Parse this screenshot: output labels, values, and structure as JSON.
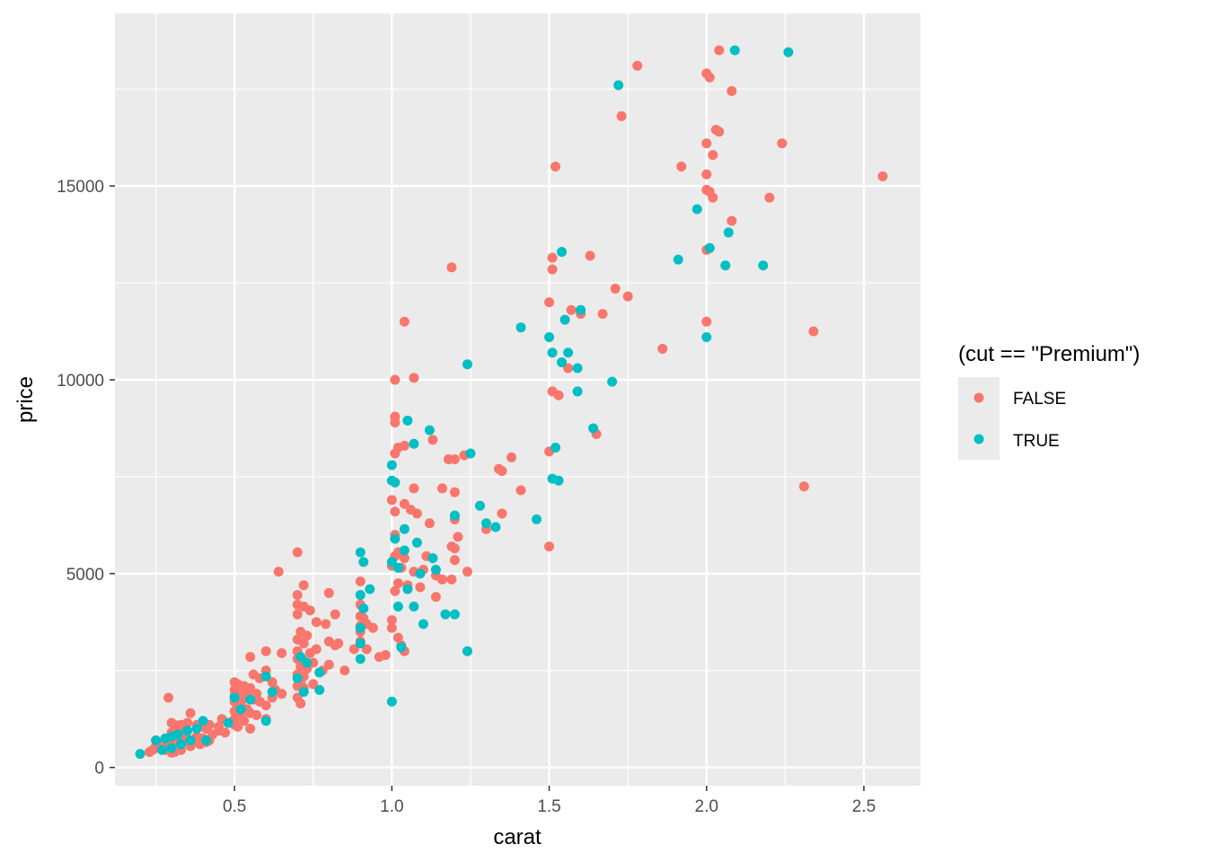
{
  "chart_data": {
    "type": "scatter",
    "xlabel": "carat",
    "ylabel": "price",
    "xlim": [
      0.12,
      2.68
    ],
    "ylim": [
      -470,
      19450
    ],
    "x_ticks": [
      0.5,
      1.0,
      1.5,
      2.0,
      2.5
    ],
    "x_tick_labels": [
      "0.5",
      "1.0",
      "1.5",
      "2.0",
      "2.5"
    ],
    "y_ticks": [
      0,
      5000,
      10000,
      15000
    ],
    "y_tick_labels": [
      "0",
      "5000",
      "10000",
      "15000"
    ],
    "grid": true,
    "panel_background": "#ebebeb",
    "grid_color": "#ffffff",
    "legend": {
      "title": "(cut == \"Premium\")",
      "placement": "right",
      "entries": [
        {
          "label": "FALSE",
          "color": "#F8766D"
        },
        {
          "label": "TRUE",
          "color": "#00BFC4"
        }
      ]
    },
    "series": [
      {
        "name": "FALSE",
        "color": "#F8766D",
        "points": [
          [
            2.04,
            18500
          ],
          [
            2.0,
            17900
          ],
          [
            2.01,
            17800
          ],
          [
            1.78,
            18100
          ],
          [
            2.08,
            17450
          ],
          [
            1.73,
            16800
          ],
          [
            2.03,
            16450
          ],
          [
            2.04,
            16400
          ],
          [
            2.0,
            16100
          ],
          [
            2.24,
            16100
          ],
          [
            2.02,
            15800
          ],
          [
            1.52,
            15500
          ],
          [
            1.92,
            15500
          ],
          [
            2.0,
            15300
          ],
          [
            2.56,
            15250
          ],
          [
            2.0,
            14900
          ],
          [
            2.01,
            14850
          ],
          [
            2.02,
            14700
          ],
          [
            2.2,
            14700
          ],
          [
            2.08,
            14100
          ],
          [
            2.0,
            13350
          ],
          [
            1.51,
            13150
          ],
          [
            1.63,
            13200
          ],
          [
            1.51,
            12850
          ],
          [
            1.19,
            12900
          ],
          [
            1.71,
            12350
          ],
          [
            1.75,
            12150
          ],
          [
            1.5,
            12000
          ],
          [
            1.57,
            11800
          ],
          [
            1.6,
            11700
          ],
          [
            1.67,
            11700
          ],
          [
            2.0,
            11500
          ],
          [
            1.04,
            11500
          ],
          [
            2.34,
            11250
          ],
          [
            1.86,
            10800
          ],
          [
            1.56,
            10300
          ],
          [
            1.01,
            10000
          ],
          [
            1.07,
            10050
          ],
          [
            1.51,
            9700
          ],
          [
            1.53,
            9600
          ],
          [
            1.01,
            9050
          ],
          [
            1.01,
            8900
          ],
          [
            1.65,
            8600
          ],
          [
            1.13,
            8450
          ],
          [
            1.02,
            8250
          ],
          [
            1.04,
            8300
          ],
          [
            1.01,
            8100
          ],
          [
            1.5,
            8150
          ],
          [
            1.2,
            7950
          ],
          [
            1.23,
            8050
          ],
          [
            1.38,
            8000
          ],
          [
            1.18,
            7950
          ],
          [
            1.34,
            7700
          ],
          [
            1.35,
            7650
          ],
          [
            2.31,
            7250
          ],
          [
            1.07,
            7200
          ],
          [
            1.16,
            7200
          ],
          [
            1.2,
            7100
          ],
          [
            1.41,
            7150
          ],
          [
            1.0,
            6900
          ],
          [
            1.04,
            6800
          ],
          [
            1.06,
            6650
          ],
          [
            1.01,
            6600
          ],
          [
            1.08,
            6550
          ],
          [
            1.35,
            6550
          ],
          [
            1.2,
            6400
          ],
          [
            1.12,
            6300
          ],
          [
            1.3,
            6150
          ],
          [
            1.01,
            6000
          ],
          [
            1.21,
            5950
          ],
          [
            1.19,
            5700
          ],
          [
            1.2,
            5650
          ],
          [
            1.5,
            5700
          ],
          [
            1.02,
            5550
          ],
          [
            1.01,
            5450
          ],
          [
            1.04,
            5400
          ],
          [
            1.11,
            5450
          ],
          [
            1.2,
            5350
          ],
          [
            1.0,
            5200
          ],
          [
            1.03,
            5150
          ],
          [
            1.07,
            5050
          ],
          [
            1.1,
            5100
          ],
          [
            1.24,
            5050
          ],
          [
            1.14,
            4950
          ],
          [
            1.16,
            4850
          ],
          [
            1.19,
            4850
          ],
          [
            1.02,
            4750
          ],
          [
            1.05,
            4700
          ],
          [
            1.09,
            4650
          ],
          [
            1.01,
            4550
          ],
          [
            1.14,
            4400
          ],
          [
            0.7,
            5550
          ],
          [
            0.64,
            5050
          ],
          [
            0.9,
            4800
          ],
          [
            0.72,
            4700
          ],
          [
            0.8,
            4500
          ],
          [
            0.7,
            4450
          ],
          [
            0.7,
            4200
          ],
          [
            0.72,
            4150
          ],
          [
            0.74,
            4050
          ],
          [
            0.82,
            3950
          ],
          [
            0.7,
            3950
          ],
          [
            0.9,
            4200
          ],
          [
            0.9,
            3900
          ],
          [
            0.91,
            3850
          ],
          [
            0.79,
            3700
          ],
          [
            0.76,
            3750
          ],
          [
            0.9,
            3650
          ],
          [
            0.9,
            3500
          ],
          [
            1.0,
            3600
          ],
          [
            1.02,
            3350
          ],
          [
            1.03,
            3150
          ],
          [
            1.04,
            3000
          ],
          [
            0.9,
            3250
          ],
          [
            0.92,
            3050
          ],
          [
            0.71,
            3500
          ],
          [
            0.73,
            3400
          ],
          [
            0.7,
            3300
          ],
          [
            0.72,
            3200
          ],
          [
            0.8,
            3250
          ],
          [
            0.82,
            3150
          ],
          [
            0.76,
            3050
          ],
          [
            0.7,
            3000
          ],
          [
            0.74,
            2950
          ],
          [
            0.7,
            2800
          ],
          [
            0.72,
            2750
          ],
          [
            0.75,
            2700
          ],
          [
            0.8,
            2650
          ],
          [
            0.71,
            2600
          ],
          [
            0.73,
            2550
          ],
          [
            0.78,
            2500
          ],
          [
            0.7,
            2400
          ],
          [
            0.72,
            2350
          ],
          [
            0.71,
            2200
          ],
          [
            0.75,
            2150
          ],
          [
            0.7,
            2100
          ],
          [
            0.72,
            2050
          ],
          [
            0.7,
            1800
          ],
          [
            0.71,
            1650
          ],
          [
            0.6,
            3000
          ],
          [
            0.65,
            2950
          ],
          [
            0.55,
            2850
          ],
          [
            0.6,
            2500
          ],
          [
            0.56,
            2400
          ],
          [
            0.58,
            2300
          ],
          [
            0.62,
            2200
          ],
          [
            0.5,
            2200
          ],
          [
            0.51,
            2150
          ],
          [
            0.53,
            2100
          ],
          [
            0.55,
            2050
          ],
          [
            0.5,
            2000
          ],
          [
            0.52,
            1950
          ],
          [
            0.54,
            1950
          ],
          [
            0.57,
            1900
          ],
          [
            0.5,
            1850
          ],
          [
            0.53,
            1800
          ],
          [
            0.56,
            1750
          ],
          [
            0.5,
            1700
          ],
          [
            0.52,
            1650
          ],
          [
            0.58,
            1700
          ],
          [
            0.6,
            1600
          ],
          [
            0.51,
            1550
          ],
          [
            0.54,
            1500
          ],
          [
            0.5,
            1450
          ],
          [
            0.55,
            1400
          ],
          [
            0.52,
            1350
          ],
          [
            0.57,
            1350
          ],
          [
            0.5,
            1250
          ],
          [
            0.53,
            1200
          ],
          [
            0.46,
            1250
          ],
          [
            0.48,
            1150
          ],
          [
            0.5,
            1100
          ],
          [
            0.51,
            1050
          ],
          [
            0.45,
            1050
          ],
          [
            0.42,
            1100
          ],
          [
            0.4,
            1050
          ],
          [
            0.41,
            1000
          ],
          [
            0.38,
            1100
          ],
          [
            0.36,
            1400
          ],
          [
            0.35,
            1150
          ],
          [
            0.33,
            1100
          ],
          [
            0.31,
            1100
          ],
          [
            0.3,
            1150
          ],
          [
            0.29,
            1800
          ],
          [
            0.32,
            1000
          ],
          [
            0.34,
            950
          ],
          [
            0.3,
            900
          ],
          [
            0.31,
            850
          ],
          [
            0.33,
            800
          ],
          [
            0.35,
            750
          ],
          [
            0.37,
            700
          ],
          [
            0.38,
            800
          ],
          [
            0.4,
            750
          ],
          [
            0.42,
            700
          ],
          [
            0.3,
            700
          ],
          [
            0.32,
            650
          ],
          [
            0.29,
            600
          ],
          [
            0.27,
            600
          ],
          [
            0.28,
            550
          ],
          [
            0.26,
            500
          ],
          [
            0.24,
            450
          ],
          [
            0.25,
            550
          ],
          [
            0.23,
            400
          ],
          [
            0.31,
            400
          ],
          [
            0.33,
            450
          ],
          [
            0.36,
            550
          ],
          [
            0.39,
            600
          ],
          [
            0.41,
            650
          ],
          [
            0.28,
            450
          ],
          [
            0.3,
            380
          ],
          [
            0.45,
            950
          ],
          [
            0.47,
            900
          ],
          [
            0.43,
            850
          ],
          [
            0.55,
            1000
          ],
          [
            0.6,
            1250
          ],
          [
            0.62,
            1800
          ],
          [
            0.65,
            1900
          ],
          [
            0.63,
            2000
          ],
          [
            1.0,
            3800
          ],
          [
            0.98,
            2900
          ],
          [
            0.96,
            2850
          ],
          [
            0.85,
            2500
          ],
          [
            0.83,
            3200
          ],
          [
            0.88,
            3050
          ],
          [
            0.92,
            3700
          ],
          [
            0.94,
            3600
          ]
        ]
      },
      {
        "name": "TRUE",
        "color": "#00BFC4",
        "points": [
          [
            2.09,
            18500
          ],
          [
            2.26,
            18450
          ],
          [
            1.72,
            17600
          ],
          [
            1.97,
            14400
          ],
          [
            2.07,
            13800
          ],
          [
            2.01,
            13400
          ],
          [
            1.54,
            13300
          ],
          [
            1.91,
            13100
          ],
          [
            2.06,
            12950
          ],
          [
            2.18,
            12950
          ],
          [
            1.6,
            11800
          ],
          [
            1.55,
            11550
          ],
          [
            1.41,
            11350
          ],
          [
            1.5,
            11100
          ],
          [
            2.0,
            11100
          ],
          [
            1.51,
            10700
          ],
          [
            1.56,
            10700
          ],
          [
            1.54,
            10450
          ],
          [
            1.24,
            10400
          ],
          [
            1.59,
            10300
          ],
          [
            1.7,
            9950
          ],
          [
            1.59,
            9700
          ],
          [
            1.05,
            8950
          ],
          [
            1.12,
            8700
          ],
          [
            1.64,
            8750
          ],
          [
            1.07,
            8350
          ],
          [
            1.25,
            8100
          ],
          [
            1.52,
            8250
          ],
          [
            1.51,
            7450
          ],
          [
            1.53,
            7400
          ],
          [
            1.0,
            7800
          ],
          [
            1.0,
            7400
          ],
          [
            1.01,
            7350
          ],
          [
            1.28,
            6750
          ],
          [
            1.3,
            6300
          ],
          [
            1.33,
            6200
          ],
          [
            1.46,
            6400
          ],
          [
            1.2,
            6500
          ],
          [
            1.04,
            6150
          ],
          [
            1.01,
            5900
          ],
          [
            1.08,
            5800
          ],
          [
            1.04,
            5600
          ],
          [
            1.0,
            5300
          ],
          [
            1.02,
            5150
          ],
          [
            1.09,
            5000
          ],
          [
            1.14,
            5100
          ],
          [
            1.13,
            5400
          ],
          [
            0.9,
            5550
          ],
          [
            0.91,
            5300
          ],
          [
            0.93,
            4600
          ],
          [
            0.9,
            4450
          ],
          [
            0.91,
            4100
          ],
          [
            1.05,
            4600
          ],
          [
            1.02,
            4150
          ],
          [
            1.07,
            4150
          ],
          [
            1.17,
            3950
          ],
          [
            1.2,
            3950
          ],
          [
            1.1,
            3700
          ],
          [
            0.9,
            3600
          ],
          [
            0.9,
            3200
          ],
          [
            1.03,
            3100
          ],
          [
            1.24,
            3000
          ],
          [
            0.9,
            2800
          ],
          [
            0.71,
            2850
          ],
          [
            0.73,
            2700
          ],
          [
            0.77,
            2450
          ],
          [
            0.7,
            2300
          ],
          [
            0.72,
            1950
          ],
          [
            0.77,
            2000
          ],
          [
            0.6,
            2350
          ],
          [
            0.62,
            1950
          ],
          [
            0.6,
            1200
          ],
          [
            1.0,
            1700
          ],
          [
            0.5,
            1800
          ],
          [
            0.55,
            1750
          ],
          [
            0.52,
            1500
          ],
          [
            0.48,
            1150
          ],
          [
            0.4,
            1200
          ],
          [
            0.38,
            1000
          ],
          [
            0.35,
            950
          ],
          [
            0.32,
            850
          ],
          [
            0.3,
            800
          ],
          [
            0.28,
            750
          ],
          [
            0.25,
            700
          ],
          [
            0.36,
            700
          ],
          [
            0.41,
            700
          ],
          [
            0.3,
            500
          ],
          [
            0.27,
            450
          ],
          [
            0.2,
            350
          ],
          [
            0.33,
            600
          ]
        ]
      }
    ]
  }
}
